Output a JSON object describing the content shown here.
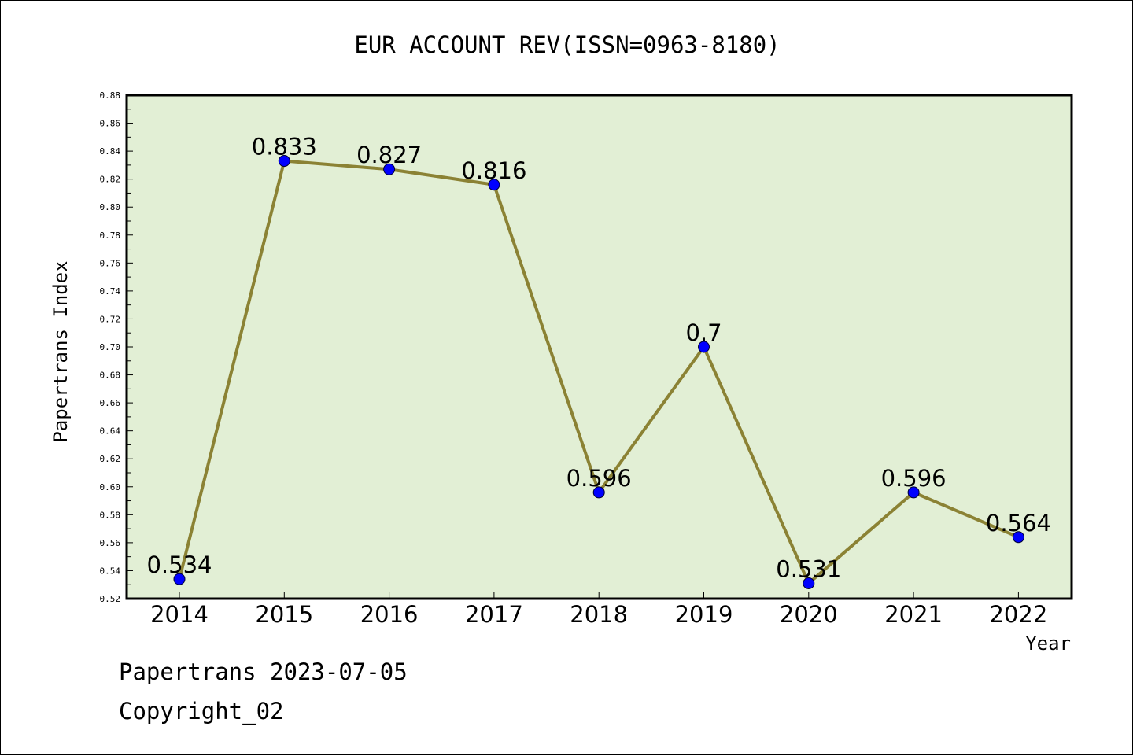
{
  "chart_data": {
    "type": "line",
    "title": "EUR ACCOUNT REV(ISSN=0963-8180)",
    "xlabel": "Year",
    "ylabel": "Papertrans Index",
    "categories": [
      "2014",
      "2015",
      "2016",
      "2017",
      "2018",
      "2019",
      "2020",
      "2021",
      "2022"
    ],
    "series": [
      {
        "values": [
          0.534,
          0.833,
          0.827,
          0.816,
          0.596,
          0.7,
          0.531,
          0.596,
          0.564
        ],
        "data_labels": [
          "0.534",
          "0.833",
          "0.827",
          "0.816",
          "0.596",
          "0.7",
          "0.531",
          "0.596",
          "0.564"
        ],
        "line_color": "#8b8234",
        "marker_color": "#0000ff"
      }
    ],
    "ylim": [
      0.52,
      0.88
    ],
    "yticks": [
      "0.52",
      "0.54",
      "0.56",
      "0.58",
      "0.60",
      "0.62",
      "0.64",
      "0.66",
      "0.68",
      "0.70",
      "0.72",
      "0.74",
      "0.76",
      "0.78",
      "0.80",
      "0.82",
      "0.84",
      "0.86",
      "0.88"
    ],
    "grid": false,
    "legend": "none",
    "plot_background": "#e2efd5"
  },
  "footer": {
    "source": "Papertrans 2023-07-05",
    "copyright": "Copyright_02"
  }
}
